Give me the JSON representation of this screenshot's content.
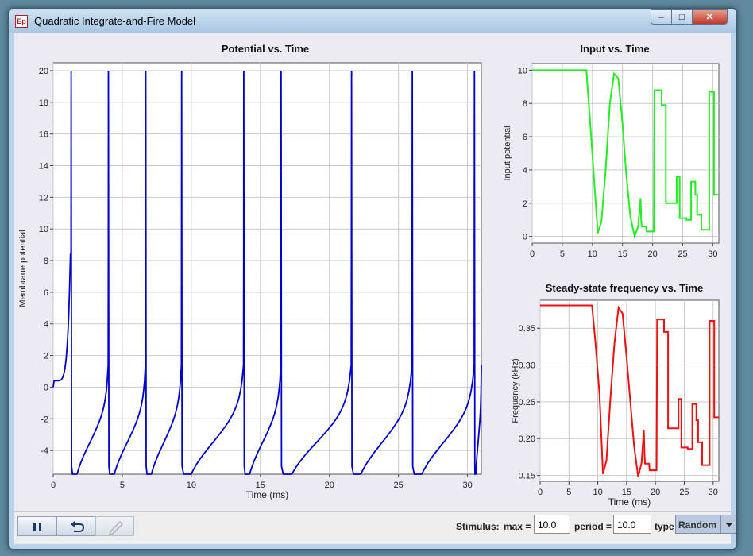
{
  "window": {
    "title": "Quadratic Integrate-and-Fire Model",
    "icon_text": "Ep",
    "controls": [
      "minimize-icon",
      "maximize-icon",
      "close-icon"
    ]
  },
  "charts": [
    {
      "id": "potential",
      "title": "Potential vs. Time",
      "xlabel": "Time (ms)",
      "ylabel": "Membrane potential",
      "xticks": [
        "0",
        "5",
        "10",
        "15",
        "20",
        "25",
        "30"
      ],
      "yticks": [
        "20",
        "18",
        "16",
        "14",
        "12",
        "10",
        "8",
        "6",
        "4",
        "2",
        "0",
        "-2",
        "-4"
      ],
      "color": "#0000cc"
    },
    {
      "id": "input",
      "title": "Input vs. Time",
      "xlabel": "",
      "ylabel": "Input potential",
      "xticks": [
        "0",
        "5",
        "10",
        "15",
        "20",
        "25",
        "30"
      ],
      "yticks": [
        "10",
        "8",
        "6",
        "4",
        "2",
        "0"
      ],
      "color": "#22ee22"
    },
    {
      "id": "frequency",
      "title": "Steady-state frequency vs. Time",
      "xlabel": "Time (ms)",
      "ylabel": "Frequency (kHz)",
      "xticks": [
        "0",
        "5",
        "10",
        "15",
        "20",
        "25",
        "30"
      ],
      "yticks": [
        "0.35",
        "0.30",
        "0.25",
        "0.20",
        "0.15"
      ],
      "color": "#ee1111"
    }
  ],
  "chart_data": [
    {
      "type": "line",
      "title": "Potential vs. Time",
      "xlabel": "Time (ms)",
      "ylabel": "Membrane potential",
      "xlim": [
        0,
        31
      ],
      "ylim": [
        -5.5,
        20.5
      ],
      "grid": true,
      "spike_times": [
        1.3,
        4.0,
        6.7,
        9.3,
        13.8,
        16.5,
        21.6,
        26.0,
        30.5
      ],
      "spike_peak": 20,
      "reset_value": -5,
      "series": [
        {
          "values_desc": "",
          "x": [],
          "y": []
        }
      ]
    },
    {
      "type": "line",
      "title": "Input vs. Time",
      "xlabel": "",
      "ylabel": "Input potential",
      "xlim": [
        0,
        31
      ],
      "ylim": [
        -0.4,
        10.4
      ],
      "grid": true,
      "series": [
        {
          "x": [
            0,
            9,
            9.6,
            10.3,
            10.9,
            11.5,
            12.2,
            12.9,
            13.6,
            14.3,
            15.0,
            15.6,
            16.3,
            17.0,
            17.6,
            18.0,
            18.1,
            18.2,
            18.3,
            18.9,
            19.0,
            20.2,
            20.3,
            20.8,
            20.8,
            21.5,
            21.5,
            22.2,
            22.2,
            22.7,
            22.7,
            24.0,
            24.0,
            24.5,
            24.5,
            25.6,
            25.6,
            26.4,
            26.4,
            27.1,
            27.1,
            27.4,
            27.4,
            28.1,
            28.1,
            29.4,
            29.4,
            30.2,
            30.2,
            31.0
          ],
          "y": [
            10,
            10,
            7.0,
            3.3,
            0.2,
            0.9,
            4.0,
            8.0,
            9.8,
            9.5,
            6.8,
            3.8,
            1.2,
            0.0,
            0.6,
            2.3,
            1.0,
            0.6,
            0.6,
            0.6,
            0.3,
            0.3,
            8.8,
            8.8,
            8.8,
            8.8,
            7.9,
            7.9,
            2.0,
            2.0,
            2.0,
            2.0,
            3.6,
            3.6,
            1.1,
            1.1,
            1.0,
            1.0,
            3.3,
            3.3,
            2.5,
            2.5,
            1.3,
            1.3,
            0.4,
            0.4,
            8.7,
            8.7,
            2.5,
            2.5
          ]
        }
      ]
    },
    {
      "type": "line",
      "title": "Steady-state frequency vs. Time",
      "xlabel": "Time (ms)",
      "ylabel": "Frequency (kHz)",
      "xlim": [
        0,
        31
      ],
      "ylim": [
        0.142,
        0.388
      ],
      "grid": true,
      "series": [
        {
          "x": [
            0,
            9,
            9.6,
            10.3,
            10.9,
            11.5,
            12.2,
            12.9,
            13.6,
            14.3,
            15.0,
            15.6,
            16.3,
            17.0,
            17.6,
            18.0,
            18.1,
            18.2,
            18.3,
            18.9,
            19.0,
            20.2,
            20.3,
            20.8,
            20.8,
            21.5,
            21.5,
            22.2,
            22.2,
            22.7,
            22.7,
            24.0,
            24.0,
            24.5,
            24.5,
            25.6,
            25.6,
            26.4,
            26.4,
            27.1,
            27.1,
            27.4,
            27.4,
            28.1,
            28.1,
            29.4,
            29.4,
            30.2,
            30.2,
            31.0
          ],
          "y": [
            0.381,
            0.381,
            0.33,
            0.26,
            0.152,
            0.17,
            0.255,
            0.33,
            0.378,
            0.37,
            0.31,
            0.255,
            0.19,
            0.148,
            0.167,
            0.212,
            0.178,
            0.166,
            0.166,
            0.166,
            0.157,
            0.157,
            0.362,
            0.362,
            0.362,
            0.362,
            0.345,
            0.345,
            0.214,
            0.214,
            0.214,
            0.214,
            0.254,
            0.254,
            0.188,
            0.188,
            0.186,
            0.186,
            0.247,
            0.247,
            0.225,
            0.225,
            0.195,
            0.195,
            0.164,
            0.164,
            0.36,
            0.36,
            0.229,
            0.229
          ]
        }
      ]
    }
  ],
  "bottom": {
    "buttons": [
      {
        "name": "pause-button",
        "icon": "pause-icon"
      },
      {
        "name": "reset-button",
        "icon": "undo-icon"
      },
      {
        "name": "edit-button",
        "icon": "pencil-icon"
      }
    ],
    "stimulus_label": "Stimulus:",
    "max_label": "max =",
    "max_value": "10.0",
    "period_label": "period =",
    "period_value": "10.0",
    "type_label": "type",
    "type_value": "Random"
  }
}
